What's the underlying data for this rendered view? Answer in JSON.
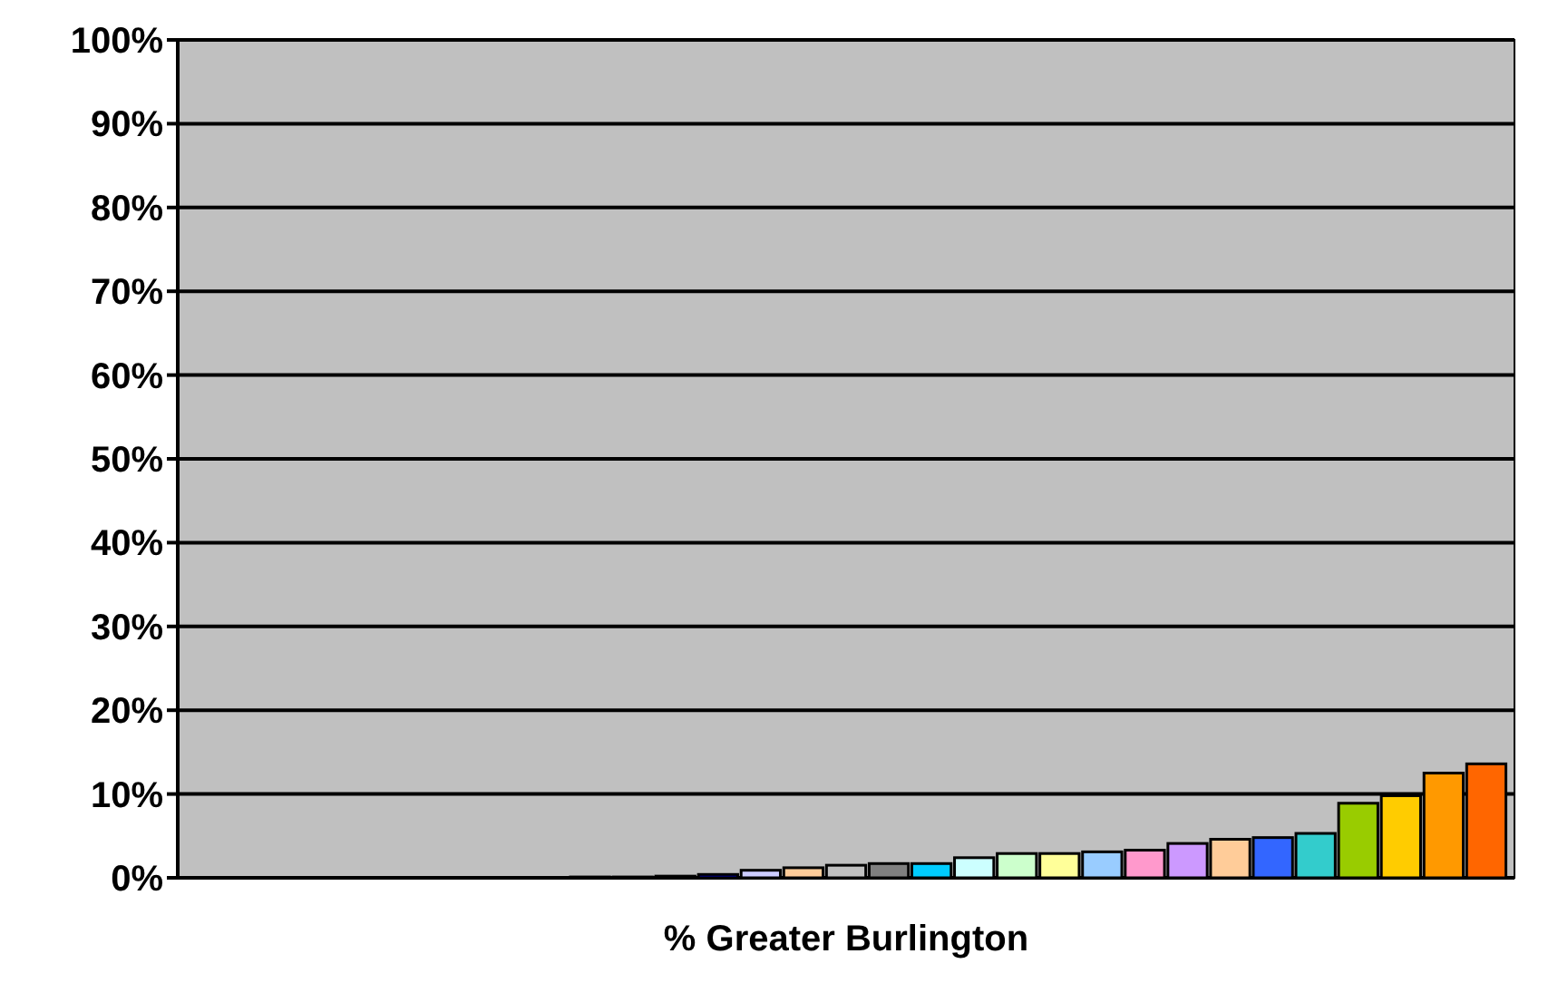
{
  "chart_data": {
    "type": "bar",
    "xlabel": "% Greater Burlington",
    "categories": [
      null,
      null,
      null,
      null,
      null,
      null,
      null,
      null,
      null,
      null,
      null,
      null,
      null,
      null,
      null,
      null,
      null,
      null,
      null,
      null,
      null,
      null,
      null,
      null,
      null,
      null,
      null,
      null,
      null,
      null,
      null
    ],
    "values": [
      0,
      0,
      0,
      0,
      0,
      0,
      0,
      0,
      0,
      0.1,
      0.1,
      0.2,
      0.4,
      0.9,
      1.2,
      1.5,
      1.7,
      1.7,
      2.4,
      2.9,
      2.9,
      3.1,
      3.3,
      4.1,
      4.6,
      4.8,
      5.3,
      8.9,
      9.8,
      12.5,
      13.6
    ],
    "colors": [
      "#808080",
      "#c0c0c0",
      "#c00000",
      "#009070",
      "#20a0a0",
      "#303080",
      "#207050",
      "#a080d0",
      "#a0d0a0",
      "#0050a0",
      "#0000c0",
      "#808080",
      "#0000c0",
      "#ccccff",
      "#ffcc99",
      "#c0c0c0",
      "#808080",
      "#00ccff",
      "#ccffff",
      "#ccffcc",
      "#ffff99",
      "#99ccff",
      "#ff99cc",
      "#cc99ff",
      "#ffcc99",
      "#3366ff",
      "#33cccc",
      "#99cc00",
      "#ffcc00",
      "#ff9900",
      "#ff6600"
    ],
    "ylim": [
      0,
      100
    ],
    "yticks": [
      {
        "value": 0,
        "label": "0%"
      },
      {
        "value": 10,
        "label": "10%"
      },
      {
        "value": 20,
        "label": "20%"
      },
      {
        "value": 30,
        "label": "30%"
      },
      {
        "value": 40,
        "label": "40%"
      },
      {
        "value": 50,
        "label": "50%"
      },
      {
        "value": 60,
        "label": "60%"
      },
      {
        "value": 70,
        "label": "70%"
      },
      {
        "value": 80,
        "label": "80%"
      },
      {
        "value": 90,
        "label": "90%"
      },
      {
        "value": 100,
        "label": "100%"
      }
    ],
    "grid": "y"
  }
}
